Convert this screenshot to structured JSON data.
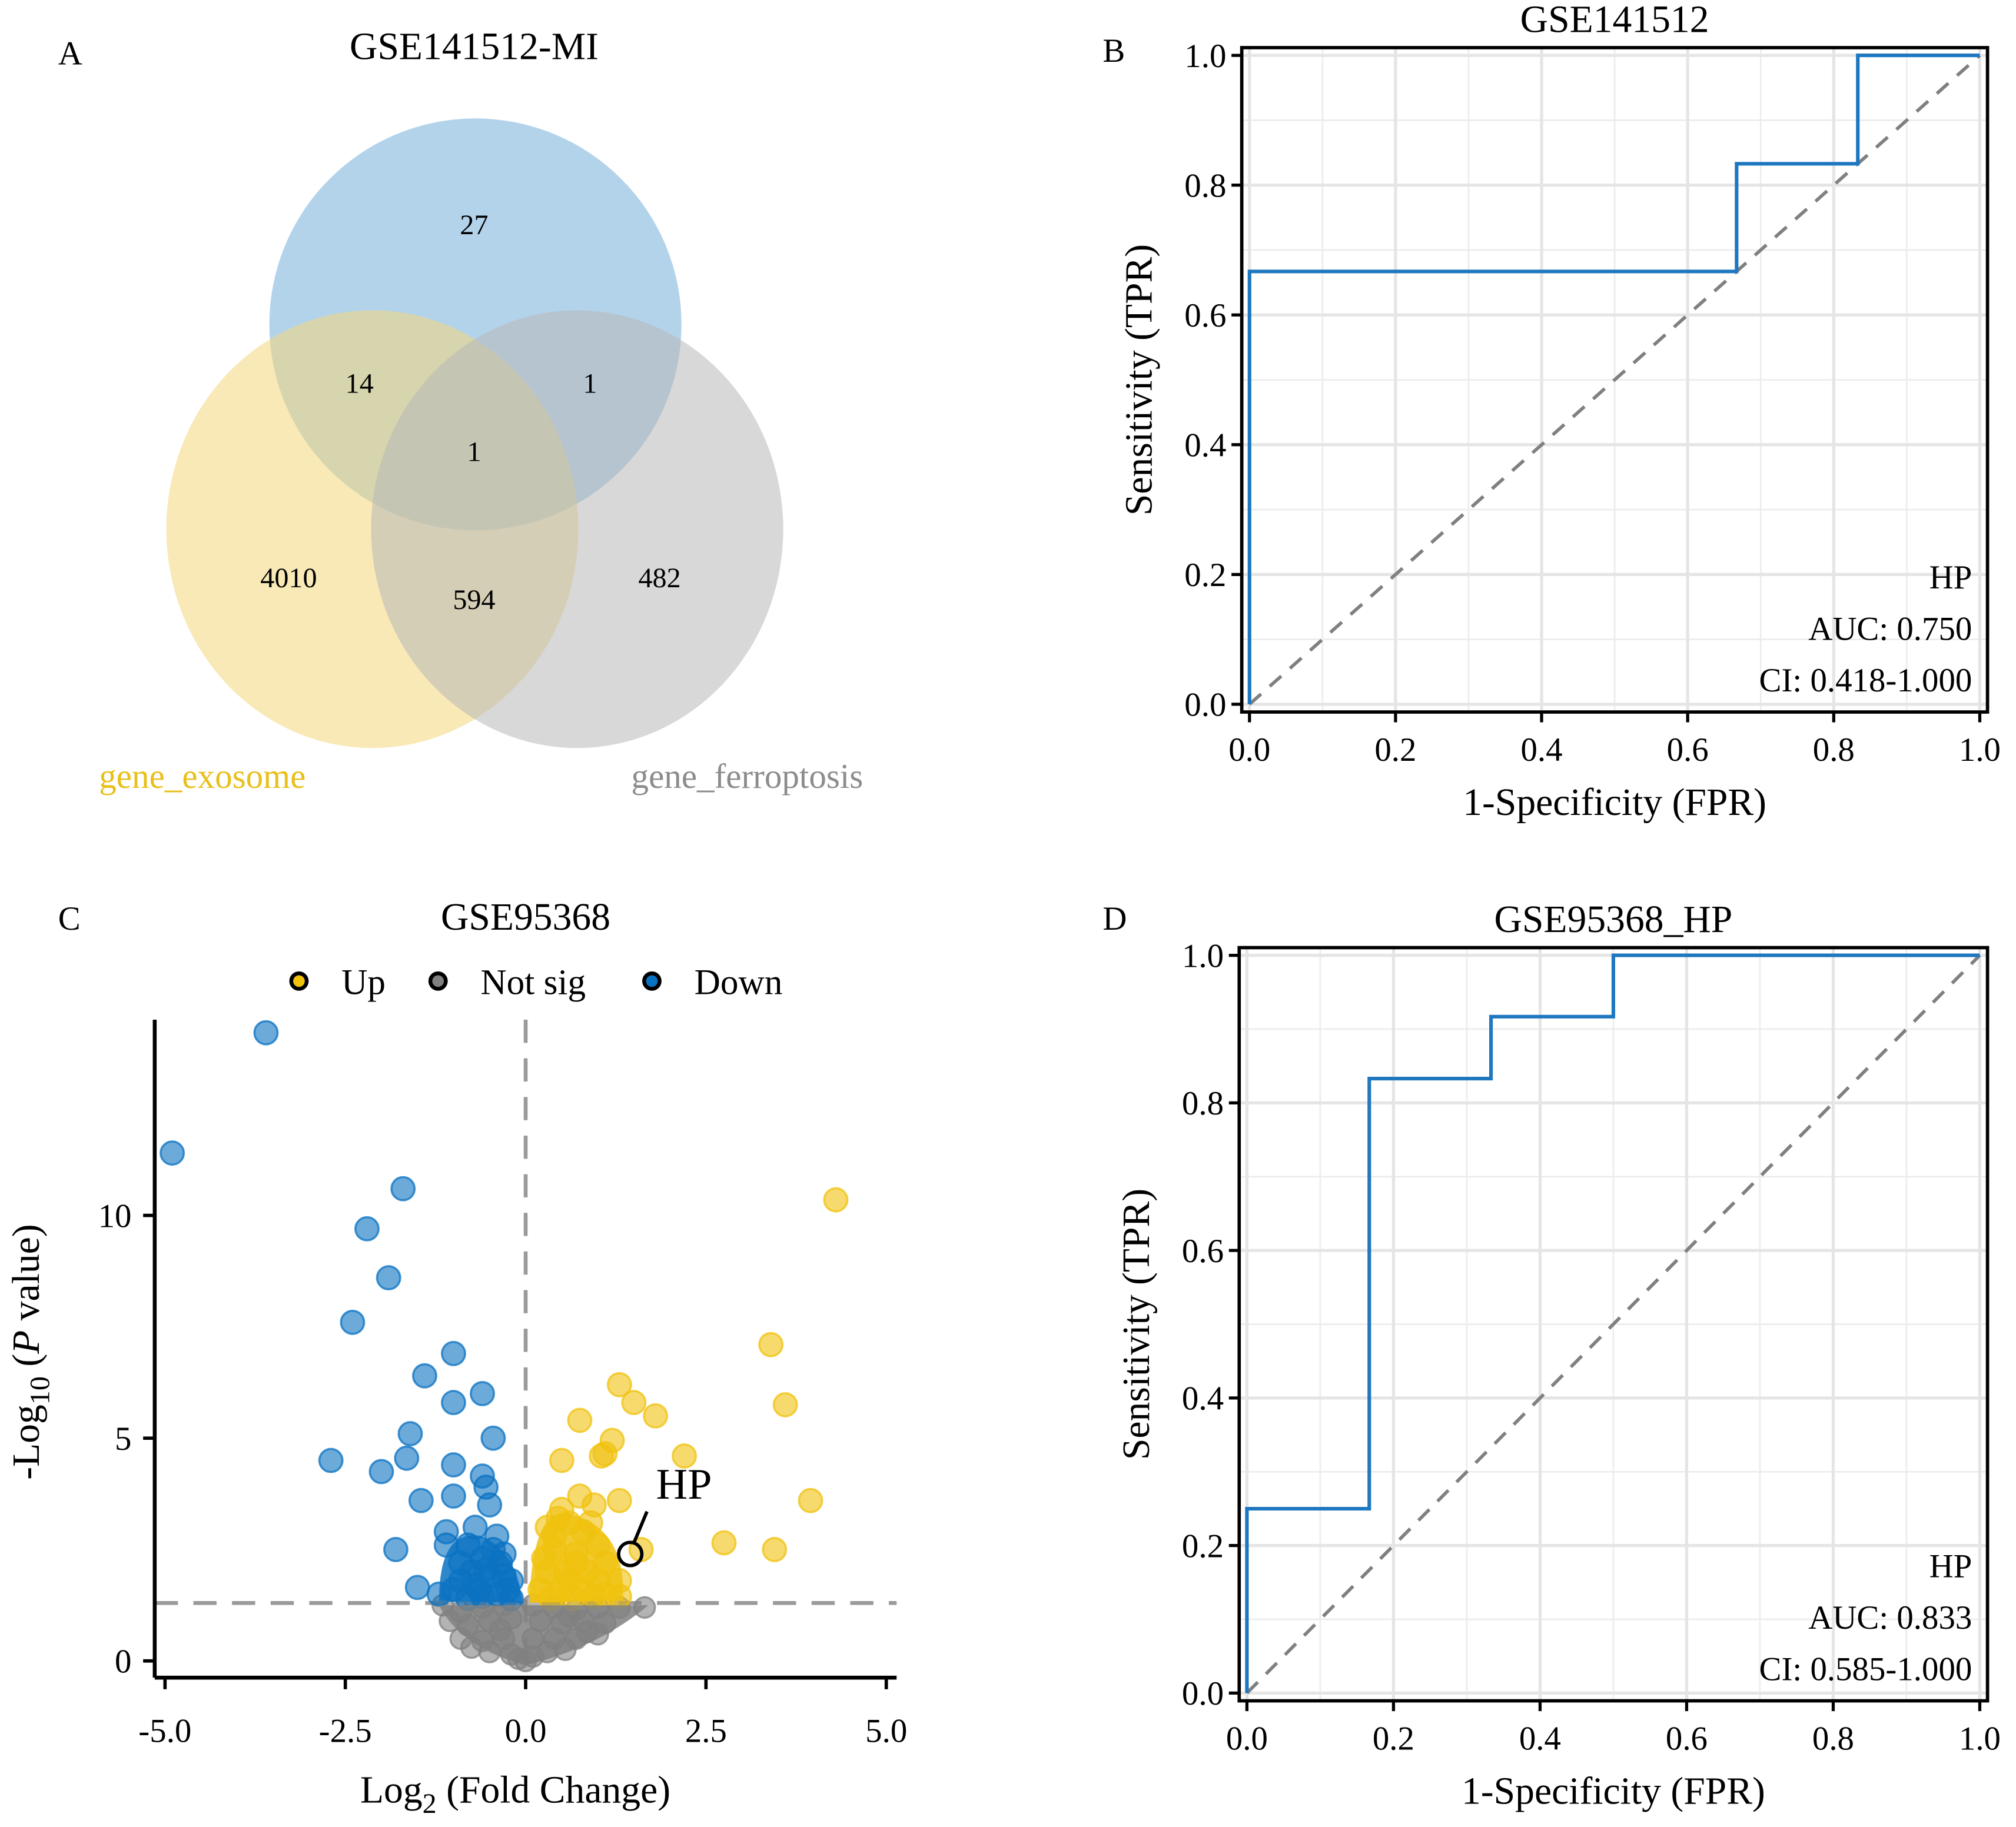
{
  "chart_data": [
    {
      "panel": "A",
      "type": "venn",
      "title": "",
      "sets": [
        {
          "name": "GSE141512-MI",
          "color": "#1f77c0",
          "fill": "#a6cbe8"
        },
        {
          "name": "gene_exosome",
          "color": "#e8c01a",
          "fill": "#f7e3a0"
        },
        {
          "name": "gene_ferroptosis",
          "color": "#8c8c8c",
          "fill": "#d0d0d0"
        }
      ],
      "regions": [
        {
          "sets": [
            "GSE141512-MI"
          ],
          "count": "27"
        },
        {
          "sets": [
            "GSE141512-MI",
            "gene_exosome"
          ],
          "count": "14"
        },
        {
          "sets": [
            "GSE141512-MI",
            "gene_ferroptosis"
          ],
          "count": "1"
        },
        {
          "sets": [
            "GSE141512-MI",
            "gene_exosome",
            "gene_ferroptosis"
          ],
          "count": "1"
        },
        {
          "sets": [
            "gene_exosome"
          ],
          "count": "4010"
        },
        {
          "sets": [
            "gene_exosome",
            "gene_ferroptosis"
          ],
          "count": "594"
        },
        {
          "sets": [
            "gene_ferroptosis"
          ],
          "count": "482"
        }
      ]
    },
    {
      "panel": "B",
      "type": "line",
      "title": "GSE141512",
      "xlabel": "1-Specificity (FPR)",
      "ylabel": "Sensitivity (TPR)",
      "xlim": [
        0,
        1
      ],
      "ylim": [
        0,
        1
      ],
      "xticks": [
        "0.0",
        "0.2",
        "0.4",
        "0.6",
        "0.8",
        "1.0"
      ],
      "yticks": [
        "0.0",
        "0.2",
        "0.4",
        "0.6",
        "0.8",
        "1.0"
      ],
      "grid": true,
      "series": [
        {
          "name": "HP",
          "color": "#1f77c0",
          "step": true,
          "x": [
            0,
            0,
            0.667,
            0.667,
            0.833,
            0.833,
            1.0
          ],
          "y": [
            0,
            0.667,
            0.667,
            0.833,
            0.833,
            1.0,
            1.0
          ]
        },
        {
          "name": "reference",
          "color": "#808080",
          "dashed": true,
          "x": [
            0,
            1
          ],
          "y": [
            0,
            1
          ]
        }
      ],
      "annotations": [
        "HP",
        "AUC: 0.750",
        "CI: 0.418-1.000"
      ],
      "annotation_placement": "bottom-right"
    },
    {
      "panel": "C",
      "type": "scatter",
      "title": "GSE95368",
      "xlabel_main": "Log",
      "xlabel_sub": "2",
      "xlabel_rest": " (Fold Change)",
      "ylabel_main": "-Log",
      "ylabel_sub": "10",
      "ylabel_open": " (",
      "ylabel_italic": "P",
      "ylabel_rest": " value)",
      "xlim": [
        -5.2,
        5.2
      ],
      "ylim": [
        -0.3,
        14.5
      ],
      "xticks": [
        "-5.0",
        "-2.5",
        "0.0",
        "2.5",
        "5.0"
      ],
      "xtick_values": [
        -5,
        -2.5,
        0,
        2.5,
        5
      ],
      "yticks": [
        "0",
        "5",
        "10"
      ],
      "ytick_values": [
        0,
        5,
        10
      ],
      "thresholds": {
        "pvalue_line": 1.3,
        "fc_line": 0
      },
      "legend": [
        {
          "label": "Up",
          "color": "#f0c20e"
        },
        {
          "label": "Not sig",
          "color": "#808080"
        },
        {
          "label": "Down",
          "color": "#0a72c2"
        }
      ],
      "legend_placement": "top-center",
      "highlight": {
        "label": "HP",
        "x": 1.45,
        "y": 2.4
      },
      "series": [
        {
          "name": "Down",
          "color": "#0a72c2",
          "points": [
            [
              -3.6,
              14.1
            ],
            [
              -4.9,
              11.4
            ],
            [
              -1.7,
              10.6
            ],
            [
              -2.2,
              9.7
            ],
            [
              -1.9,
              8.6
            ],
            [
              -2.4,
              7.6
            ],
            [
              -1.0,
              6.9
            ],
            [
              -1.4,
              6.4
            ],
            [
              -0.6,
              6.0
            ],
            [
              -1.0,
              5.8
            ],
            [
              -1.6,
              5.1
            ],
            [
              -0.45,
              5.0
            ],
            [
              -2.7,
              4.5
            ],
            [
              -1.65,
              4.55
            ],
            [
              -2.0,
              4.25
            ],
            [
              -1.0,
              4.4
            ],
            [
              -0.6,
              4.15
            ],
            [
              -0.55,
              3.9
            ],
            [
              -1.45,
              3.6
            ],
            [
              -1.0,
              3.7
            ],
            [
              -0.5,
              3.5
            ],
            [
              -1.1,
              2.9
            ],
            [
              -0.7,
              3.0
            ],
            [
              -0.4,
              2.8
            ],
            [
              -1.8,
              2.5
            ],
            [
              -1.1,
              2.6
            ],
            [
              -0.8,
              2.6
            ],
            [
              -1.5,
              1.65
            ],
            [
              -0.9,
              2.2
            ],
            [
              -0.6,
              2.3
            ],
            [
              -0.35,
              2.2
            ],
            [
              -0.3,
              1.9
            ],
            [
              -0.5,
              1.9
            ],
            [
              -0.7,
              1.7
            ],
            [
              -1.0,
              1.6
            ],
            [
              -0.25,
              1.6
            ],
            [
              -0.4,
              1.5
            ],
            [
              -0.6,
              1.45
            ],
            [
              -0.8,
              1.4
            ],
            [
              -0.2,
              1.4
            ],
            [
              -0.45,
              2.5
            ],
            [
              -0.55,
              2.05
            ],
            [
              -0.3,
              2.4
            ],
            [
              -0.75,
              2.0
            ],
            [
              -0.65,
              1.6
            ],
            [
              -0.2,
              1.8
            ],
            [
              -0.9,
              1.8
            ],
            [
              -1.2,
              1.5
            ]
          ]
        },
        {
          "name": "Up",
          "color": "#f0c20e",
          "points": [
            [
              4.3,
              10.35
            ],
            [
              3.4,
              7.1
            ],
            [
              3.6,
              5.75
            ],
            [
              1.3,
              6.2
            ],
            [
              1.5,
              5.8
            ],
            [
              1.8,
              5.5
            ],
            [
              0.75,
              5.4
            ],
            [
              1.2,
              4.95
            ],
            [
              2.2,
              4.6
            ],
            [
              0.5,
              4.5
            ],
            [
              1.05,
              4.6
            ],
            [
              1.1,
              4.65
            ],
            [
              0.75,
              3.7
            ],
            [
              0.5,
              3.4
            ],
            [
              0.95,
              3.5
            ],
            [
              1.3,
              3.6
            ],
            [
              3.95,
              3.6
            ],
            [
              2.75,
              2.65
            ],
            [
              3.45,
              2.5
            ],
            [
              1.6,
              2.5
            ],
            [
              1.3,
              1.8
            ],
            [
              0.3,
              3.0
            ],
            [
              0.6,
              3.1
            ],
            [
              0.8,
              2.9
            ],
            [
              0.4,
              2.5
            ],
            [
              0.7,
              2.4
            ],
            [
              1.0,
              2.6
            ],
            [
              0.3,
              2.0
            ],
            [
              0.55,
              2.0
            ],
            [
              0.85,
              2.0
            ],
            [
              1.1,
              2.2
            ],
            [
              0.2,
              1.6
            ],
            [
              0.5,
              1.6
            ],
            [
              0.8,
              1.6
            ],
            [
              1.1,
              1.5
            ],
            [
              0.35,
              1.4
            ],
            [
              0.65,
              1.4
            ],
            [
              0.95,
              1.45
            ],
            [
              1.3,
              1.45
            ],
            [
              0.4,
              2.8
            ],
            [
              0.7,
              2.2
            ],
            [
              0.25,
              2.3
            ],
            [
              0.6,
              1.8
            ],
            [
              1.0,
              1.8
            ],
            [
              0.45,
              3.2
            ],
            [
              0.9,
              3.1
            ]
          ]
        },
        {
          "name": "Not sig",
          "color": "#808080",
          "points": [
            [
              -1.15,
              1.25
            ],
            [
              -0.9,
              1.1
            ],
            [
              -0.6,
              1.2
            ],
            [
              -0.3,
              1.25
            ],
            [
              0.1,
              1.25
            ],
            [
              0.4,
              1.2
            ],
            [
              0.7,
              1.15
            ],
            [
              1.0,
              1.2
            ],
            [
              1.3,
              1.2
            ],
            [
              1.65,
              1.2
            ],
            [
              -1.05,
              0.9
            ],
            [
              -0.8,
              0.8
            ],
            [
              -0.5,
              0.9
            ],
            [
              -0.2,
              0.95
            ],
            [
              0.2,
              0.9
            ],
            [
              0.5,
              0.85
            ],
            [
              0.8,
              0.9
            ],
            [
              1.1,
              0.85
            ],
            [
              -0.9,
              0.5
            ],
            [
              -0.6,
              0.45
            ],
            [
              -0.3,
              0.5
            ],
            [
              0.1,
              0.5
            ],
            [
              0.4,
              0.5
            ],
            [
              0.7,
              0.5
            ],
            [
              1.0,
              0.6
            ],
            [
              -0.5,
              0.2
            ],
            [
              -0.2,
              0.15
            ],
            [
              0.1,
              0.1
            ],
            [
              0.3,
              0.2
            ],
            [
              0.55,
              0.25
            ],
            [
              -0.1,
              0.05
            ],
            [
              0.0,
              0.0
            ],
            [
              0.85,
              0.65
            ],
            [
              -0.75,
              0.3
            ],
            [
              0.6,
              1.0
            ],
            [
              -0.35,
              0.7
            ]
          ]
        }
      ]
    },
    {
      "panel": "D",
      "type": "line",
      "title": "GSE95368_HP",
      "xlabel": "1-Specificity (FPR)",
      "ylabel": "Sensitivity (TPR)",
      "xlim": [
        0,
        1
      ],
      "ylim": [
        0,
        1
      ],
      "xticks": [
        "0.0",
        "0.2",
        "0.4",
        "0.6",
        "0.8",
        "1.0"
      ],
      "yticks": [
        "0.0",
        "0.2",
        "0.4",
        "0.6",
        "0.8",
        "1.0"
      ],
      "grid": true,
      "series": [
        {
          "name": "HP",
          "color": "#1f77c0",
          "step": true,
          "x": [
            0,
            0,
            0.167,
            0.167,
            0.333,
            0.333,
            0.5,
            0.5,
            1.0
          ],
          "y": [
            0,
            0.25,
            0.25,
            0.833,
            0.833,
            0.917,
            0.917,
            1.0,
            1.0
          ]
        },
        {
          "name": "reference",
          "color": "#808080",
          "dashed": true,
          "x": [
            0,
            1
          ],
          "y": [
            0,
            1
          ]
        }
      ],
      "annotations": [
        "HP",
        "AUC: 0.833",
        "CI: 0.585-1.000"
      ],
      "annotation_placement": "bottom-right"
    }
  ],
  "panels": {
    "A": {
      "label": "A"
    },
    "B": {
      "label": "B"
    },
    "C": {
      "label": "C"
    },
    "D": {
      "label": "D"
    }
  }
}
